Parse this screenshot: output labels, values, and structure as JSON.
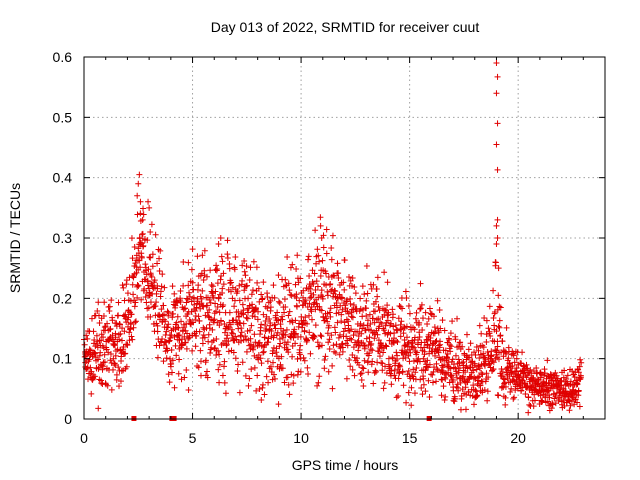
{
  "chart_data": {
    "type": "scatter",
    "title": "Day 013 of 2022, SRMTID for receiver cuut",
    "xlabel": "GPS time / hours",
    "ylabel": "SRMTID / TECUs",
    "xlim": [
      0,
      24
    ],
    "ylim": [
      0,
      0.6
    ],
    "x_ticks": [
      "0",
      "5",
      "10",
      "15",
      "20"
    ],
    "y_ticks": [
      "0",
      "0.1",
      "0.2",
      "0.3",
      "0.4",
      "0.5",
      "0.6"
    ],
    "grid": true,
    "marker": "plus",
    "color": "#e00000",
    "series": [
      {
        "name": "SRMTID",
        "envelope": {
          "x": [
            0.0,
            0.5,
            1.0,
            1.5,
            2.0,
            2.3,
            2.5,
            2.7,
            3.0,
            3.5,
            4.0,
            4.5,
            5.0,
            5.5,
            6.0,
            7.0,
            8.0,
            9.0,
            9.5,
            10.0,
            10.5,
            11.0,
            11.5,
            12.0,
            12.5,
            13.0,
            13.5,
            14.0,
            14.5,
            15.0,
            15.5,
            16.0,
            16.5,
            17.0,
            17.5,
            18.0,
            18.5,
            18.9,
            19.0,
            19.2,
            19.5,
            20.0,
            20.5,
            21.0,
            21.5,
            22.0,
            22.5,
            22.9
          ],
          "mean": [
            0.08,
            0.11,
            0.12,
            0.12,
            0.15,
            0.2,
            0.25,
            0.27,
            0.22,
            0.17,
            0.14,
            0.16,
            0.17,
            0.18,
            0.17,
            0.16,
            0.15,
            0.13,
            0.15,
            0.16,
            0.18,
            0.2,
            0.18,
            0.17,
            0.16,
            0.16,
            0.14,
            0.13,
            0.12,
            0.11,
            0.13,
            0.12,
            0.1,
            0.09,
            0.08,
            0.08,
            0.09,
            0.12,
            0.16,
            0.1,
            0.08,
            0.07,
            0.06,
            0.06,
            0.05,
            0.045,
            0.05,
            0.06
          ],
          "spread": [
            0.04,
            0.05,
            0.05,
            0.05,
            0.06,
            0.07,
            0.08,
            0.08,
            0.08,
            0.07,
            0.06,
            0.07,
            0.07,
            0.08,
            0.08,
            0.08,
            0.08,
            0.07,
            0.08,
            0.08,
            0.09,
            0.09,
            0.08,
            0.08,
            0.07,
            0.07,
            0.07,
            0.07,
            0.06,
            0.06,
            0.06,
            0.06,
            0.05,
            0.05,
            0.04,
            0.04,
            0.05,
            0.08,
            0.12,
            0.05,
            0.04,
            0.03,
            0.03,
            0.03,
            0.025,
            0.025,
            0.025,
            0.03
          ]
        },
        "x_range": [
          0.0,
          22.9
        ],
        "points_per_hour": 95,
        "extra_points": [
          {
            "x": 2.45,
            "y": 0.37
          },
          {
            "x": 2.5,
            "y": 0.39
          },
          {
            "x": 2.55,
            "y": 0.405
          },
          {
            "x": 2.6,
            "y": 0.36
          },
          {
            "x": 2.7,
            "y": 0.33
          },
          {
            "x": 2.95,
            "y": 0.36
          },
          {
            "x": 3.0,
            "y": 0.35
          },
          {
            "x": 3.05,
            "y": 0.31
          },
          {
            "x": 10.9,
            "y": 0.32
          },
          {
            "x": 10.95,
            "y": 0.3
          },
          {
            "x": 6.3,
            "y": 0.3
          },
          {
            "x": 6.2,
            "y": 0.29
          },
          {
            "x": 19.0,
            "y": 0.59
          },
          {
            "x": 19.05,
            "y": 0.567
          },
          {
            "x": 19.0,
            "y": 0.54
          },
          {
            "x": 19.05,
            "y": 0.49
          },
          {
            "x": 19.0,
            "y": 0.455
          },
          {
            "x": 19.05,
            "y": 0.413
          },
          {
            "x": 19.05,
            "y": 0.33
          },
          {
            "x": 19.0,
            "y": 0.32
          },
          {
            "x": 19.05,
            "y": 0.3
          },
          {
            "x": 19.0,
            "y": 0.29
          },
          {
            "x": 18.95,
            "y": 0.26
          },
          {
            "x": 19.1,
            "y": 0.25
          }
        ]
      }
    ],
    "data_gaps_x": [
      2.3,
      4.05,
      4.15,
      15.9
    ]
  }
}
